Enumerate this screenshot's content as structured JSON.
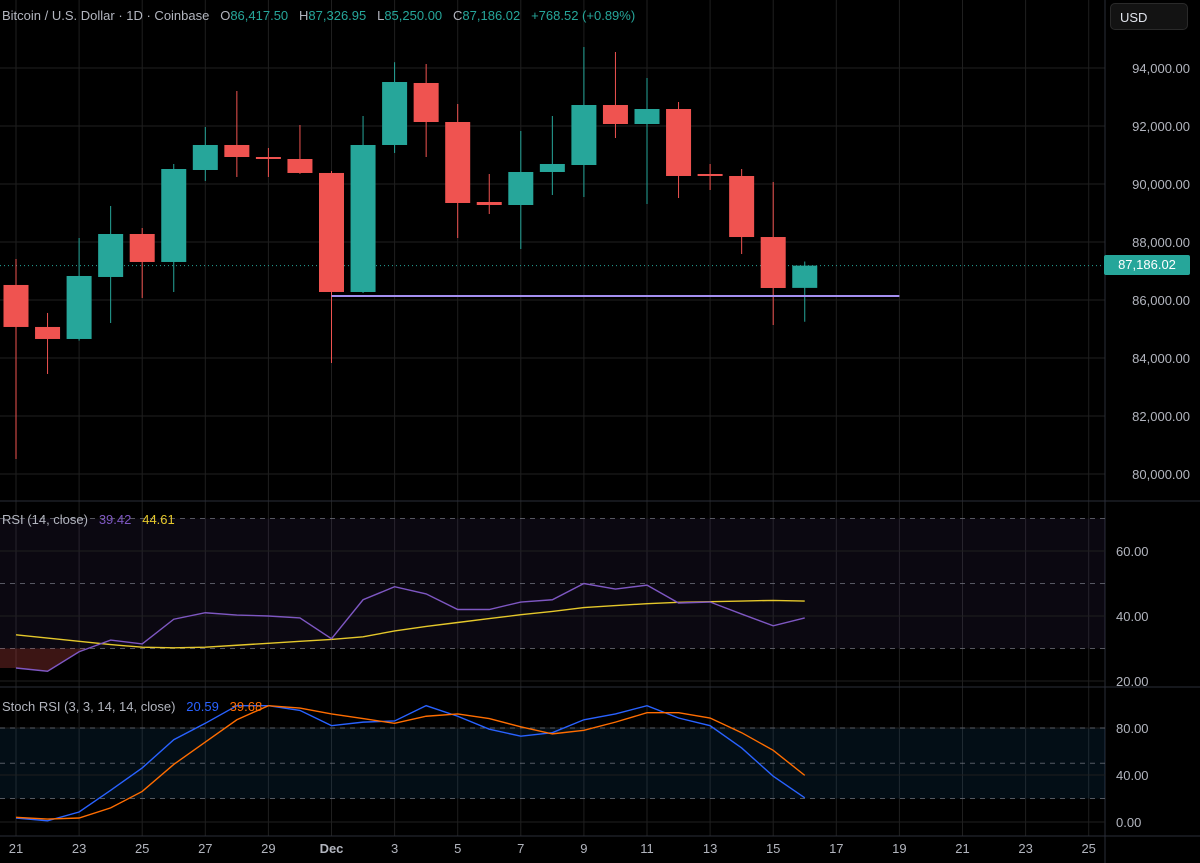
{
  "header": {
    "symbol": "Bitcoin / U.S. Dollar · 1D · Coinbase",
    "open_label": "O",
    "open": "86,417.50",
    "high_label": "H",
    "high": "87,326.95",
    "low_label": "L",
    "low": "85,250.00",
    "close_label": "C",
    "close": "87,186.02",
    "change": "+768.52 (+0.89%)"
  },
  "currency_button": "USD",
  "last_price_label": "87,186.02",
  "colors": {
    "up": "#26a69a",
    "down": "#ef5350",
    "rsi": "#7e57c2",
    "rsi_ma": "#e5c82b",
    "stoch_k": "#2962ff",
    "stoch_d": "#ff6d00",
    "level_line": "#a48ff0"
  },
  "chart_data": [
    {
      "type": "candlestick",
      "title": "Bitcoin / U.S. Dollar · 1D · Coinbase",
      "y_ticks": [
        "94,000.00",
        "92,000.00",
        "90,000.00",
        "88,000.00",
        "86,000.00",
        "84,000.00",
        "82,000.00",
        "80,000.00"
      ],
      "y_tick_values": [
        94000,
        92000,
        90000,
        88000,
        86000,
        84000,
        82000,
        80000
      ],
      "x_ticks": [
        "21",
        "23",
        "25",
        "27",
        "29",
        "Dec",
        "3",
        "5",
        "7",
        "9",
        "11",
        "13",
        "15",
        "17",
        "19",
        "21",
        "23",
        "25"
      ],
      "x_range": [
        "Nov 21",
        "Dec 25"
      ],
      "ylim": [
        78600,
        96000
      ],
      "grid": true,
      "horizontal_level": 86140,
      "horizontal_level_range": [
        "Dec 1",
        "Dec 19"
      ],
      "last_price": 87186.02,
      "candles": [
        [
          "Nov 21",
          86518,
          87414,
          80517,
          85070
        ],
        [
          "Nov 22",
          85070,
          85553,
          83449,
          84656
        ],
        [
          "Nov 23",
          84656,
          88138,
          84600,
          86828
        ],
        [
          "Nov 24",
          86794,
          89242,
          85207,
          88276
        ],
        [
          "Nov 25",
          88276,
          88483,
          86070,
          87311
        ],
        [
          "Nov 26",
          87311,
          90690,
          86276,
          90517
        ],
        [
          "Nov 27",
          90483,
          91966,
          90104,
          91345
        ],
        [
          "Nov 28",
          91345,
          93207,
          90242,
          90931
        ],
        [
          "Nov 29",
          90931,
          91242,
          90242,
          90862
        ],
        [
          "Nov 30",
          90862,
          92035,
          90350,
          90380
        ],
        [
          "Dec 1",
          90380,
          90450,
          83828,
          86276
        ],
        [
          "Dec 2",
          86276,
          92345,
          86240,
          91345
        ],
        [
          "Dec 3",
          91345,
          94200,
          91070,
          93517
        ],
        [
          "Dec 4",
          93483,
          94138,
          90931,
          92138
        ],
        [
          "Dec 5",
          92138,
          92759,
          88138,
          89345
        ],
        [
          "Dec 6",
          89379,
          90345,
          88966,
          89276
        ],
        [
          "Dec 7",
          89276,
          91828,
          87759,
          90414
        ],
        [
          "Dec 8",
          90414,
          92345,
          89621,
          90690
        ],
        [
          "Dec 9",
          90655,
          94724,
          89552,
          92724
        ],
        [
          "Dec 10",
          92724,
          94552,
          91586,
          92069
        ],
        [
          "Dec 11",
          92069,
          93655,
          89310,
          92586
        ],
        [
          "Dec 12",
          92586,
          92828,
          89517,
          90276
        ],
        [
          "Dec 13",
          90345,
          90690,
          89793,
          90276
        ],
        [
          "Dec 14",
          90276,
          90517,
          87586,
          88172
        ],
        [
          "Dec 15",
          88172,
          90069,
          85138,
          86414
        ],
        [
          "Dec 16",
          86417.5,
          87326.95,
          85250,
          87186.02
        ]
      ]
    },
    {
      "type": "line",
      "title": "RSI (14, close)",
      "value_labels": [
        "39.42",
        "44.61"
      ],
      "y_ticks": [
        "60.00",
        "40.00",
        "20.00"
      ],
      "y_tick_values": [
        60,
        40,
        20
      ],
      "bands": [
        70,
        50,
        30
      ],
      "ylim": [
        13.5,
        74
      ],
      "series": [
        {
          "name": "RSI",
          "values": [
            24,
            23,
            29,
            32.6,
            31.4,
            39,
            41,
            40.3,
            40,
            39.4,
            33,
            45,
            49,
            46.8,
            42,
            42,
            44.3,
            45,
            50,
            48.3,
            49.5,
            44,
            44.3,
            40.6,
            37,
            39.42
          ]
        },
        {
          "name": "RSI-based MA",
          "values": [
            34.2,
            33.2,
            32.2,
            31.2,
            30.4,
            30.2,
            30.4,
            31,
            31.6,
            32.2,
            32.8,
            33.6,
            35.4,
            36.8,
            38,
            39.2,
            40.4,
            41.4,
            42.6,
            43.2,
            43.8,
            44.2,
            44.4,
            44.6,
            44.8,
            44.61
          ]
        }
      ]
    },
    {
      "type": "line",
      "title": "Stoch RSI (3, 3, 14, 14, close)",
      "value_labels": [
        "20.59",
        "39.68"
      ],
      "y_ticks": [
        "80.00",
        "40.00",
        "0.00"
      ],
      "y_tick_values": [
        80,
        40,
        0
      ],
      "bands": [
        80,
        50,
        20
      ],
      "ylim": [
        -12,
        112
      ],
      "series": [
        {
          "name": "K",
          "values": [
            3.4,
            1,
            8.5,
            27,
            46,
            70,
            84,
            99,
            99,
            95,
            82,
            85,
            86,
            99,
            90,
            79,
            73,
            76,
            87,
            92,
            99,
            88.5,
            82,
            63,
            39,
            20.59
          ]
        },
        {
          "name": "D",
          "values": [
            4,
            2.5,
            3.4,
            12,
            26,
            49,
            68,
            87,
            99,
            97,
            92,
            88,
            84,
            90,
            92,
            88,
            81,
            75,
            78,
            85,
            93,
            93,
            88.5,
            76,
            61,
            39.68
          ]
        }
      ]
    }
  ]
}
